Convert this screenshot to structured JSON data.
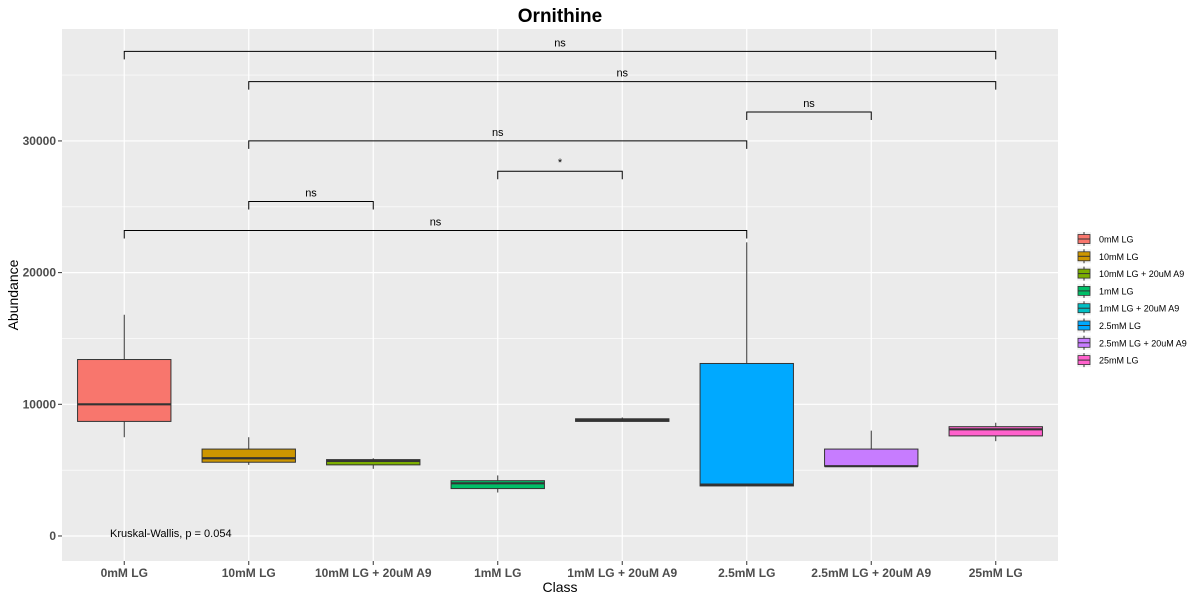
{
  "chart_data": {
    "type": "box",
    "title": "Ornithine",
    "xlabel": "Class",
    "ylabel": "Abundance",
    "ylim": [
      -1900,
      38500
    ],
    "y_ticks": [
      0,
      10000,
      20000,
      30000
    ],
    "y_tick_labels": [
      "0",
      "10000",
      "20000",
      "30000"
    ],
    "grid": true,
    "legend_position": "right",
    "categories": [
      "0mM LG",
      "10mM LG",
      "10mM LG + 20uM A9",
      "1mM LG",
      "1mM LG + 20uM A9",
      "2.5mM LG",
      "2.5mM LG + 20uM A9",
      "25mM LG"
    ],
    "colors": [
      "#F8766D",
      "#CD9600",
      "#7CAE00",
      "#00BE67",
      "#00BFC4",
      "#00A9FF",
      "#C77CFF",
      "#FF61CC"
    ],
    "boxes": [
      {
        "min": 7500,
        "q1": 8700,
        "median": 10000,
        "q3": 13400,
        "max": 16800
      },
      {
        "min": 5400,
        "q1": 5600,
        "median": 5900,
        "q3": 6600,
        "max": 7500
      },
      {
        "min": 5100,
        "q1": 5400,
        "median": 5700,
        "q3": 5800,
        "max": 5900
      },
      {
        "min": 3300,
        "q1": 3600,
        "median": 4000,
        "q3": 4200,
        "max": 4600
      },
      {
        "min": 8700,
        "q1": 8700,
        "median": 8800,
        "q3": 8900,
        "max": 9000
      },
      {
        "min": 3800,
        "q1": 3800,
        "median": 3900,
        "q3": 13100,
        "max": 22300
      },
      {
        "min": 5300,
        "q1": 5300,
        "median": 5300,
        "q3": 6600,
        "max": 8000
      },
      {
        "min": 7200,
        "q1": 7600,
        "median": 8100,
        "q3": 8300,
        "max": 8600
      }
    ],
    "comparisons": [
      {
        "from": 0,
        "to": 7,
        "y": 36800,
        "label": "ns"
      },
      {
        "from": 1,
        "to": 7,
        "y": 34500,
        "label": "ns"
      },
      {
        "from": 5,
        "to": 6,
        "y": 32200,
        "label": "ns"
      },
      {
        "from": 1,
        "to": 5,
        "y": 30000,
        "label": "ns"
      },
      {
        "from": 3,
        "to": 4,
        "y": 27700,
        "label": "*"
      },
      {
        "from": 1,
        "to": 2,
        "y": 25400,
        "label": "ns"
      },
      {
        "from": 0,
        "to": 5,
        "y": 23200,
        "label": "ns"
      }
    ],
    "annotation": "Kruskal-Wallis, p = 0.054",
    "legend": [
      "0mM LG",
      "10mM LG",
      "10mM LG + 20uM A9",
      "1mM LG",
      "1mM LG + 20uM A9",
      "2.5mM LG",
      "2.5mM LG + 20uM A9",
      "25mM LG"
    ]
  }
}
